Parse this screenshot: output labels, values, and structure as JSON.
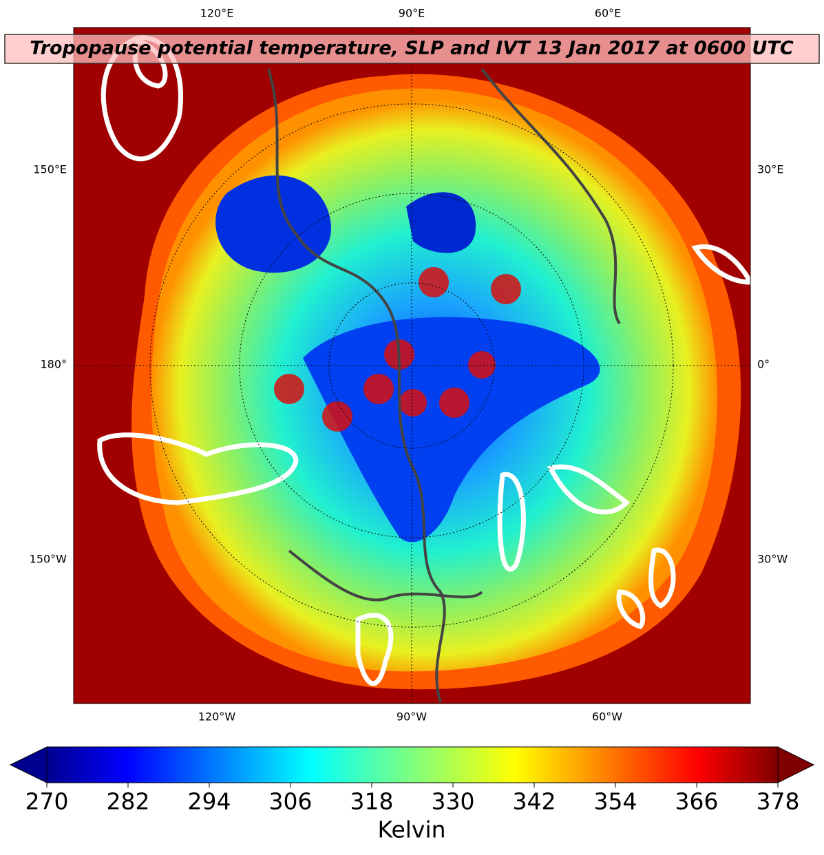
{
  "title": "Tropopause potential temperature, SLP and IVT 13 Jan 2017 at 0600 UTC",
  "lon_labels": {
    "top": [
      "120°E",
      "90°E",
      "60°E"
    ],
    "bottom": [
      "120°W",
      "90°W",
      "60°W"
    ],
    "left": [
      "150°E",
      "180°",
      "150°W"
    ],
    "right": [
      "30°E",
      "0°",
      "30°W"
    ]
  },
  "colorbar": {
    "label": "Kelvin",
    "range": [
      270,
      378
    ],
    "ticks": [
      270,
      282,
      294,
      306,
      318,
      330,
      342,
      354,
      366,
      378
    ]
  }
}
